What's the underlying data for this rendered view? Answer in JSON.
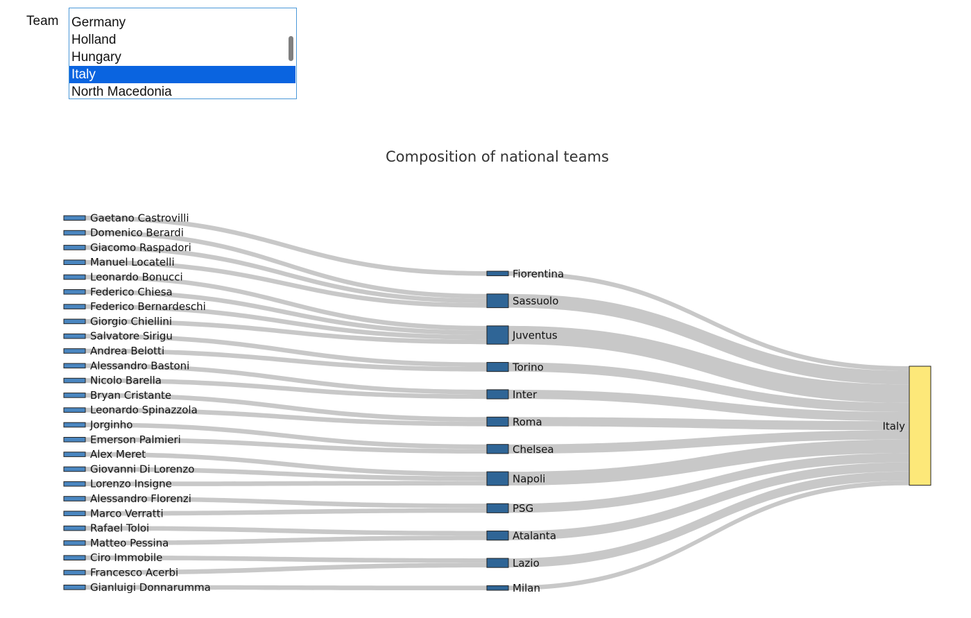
{
  "filter": {
    "label": "Team",
    "options": [
      "Germany",
      "Holland",
      "Hungary",
      "Italy",
      "North Macedonia"
    ],
    "selected": "Italy"
  },
  "chart_data": {
    "type": "sankey",
    "title": "Composition of national teams",
    "players": [
      {
        "name": "Gaetano Castrovilli",
        "club": "Fiorentina"
      },
      {
        "name": "Domenico Berardi",
        "club": "Sassuolo"
      },
      {
        "name": "Giacomo Raspadori",
        "club": "Sassuolo"
      },
      {
        "name": "Manuel Locatelli",
        "club": "Sassuolo"
      },
      {
        "name": "Leonardo Bonucci",
        "club": "Juventus"
      },
      {
        "name": "Federico Chiesa",
        "club": "Juventus"
      },
      {
        "name": "Federico Bernardeschi",
        "club": "Juventus"
      },
      {
        "name": "Giorgio Chiellini",
        "club": "Juventus"
      },
      {
        "name": "Salvatore Sirigu",
        "club": "Torino"
      },
      {
        "name": "Andrea Belotti",
        "club": "Torino"
      },
      {
        "name": "Alessandro Bastoni",
        "club": "Inter"
      },
      {
        "name": "Nicolo Barella",
        "club": "Inter"
      },
      {
        "name": "Bryan Cristante",
        "club": "Roma"
      },
      {
        "name": "Leonardo Spinazzola",
        "club": "Roma"
      },
      {
        "name": "Jorginho",
        "club": "Chelsea"
      },
      {
        "name": "Emerson Palmieri",
        "club": "Chelsea"
      },
      {
        "name": "Alex Meret",
        "club": "Napoli"
      },
      {
        "name": "Giovanni Di Lorenzo",
        "club": "Napoli"
      },
      {
        "name": "Lorenzo Insigne",
        "club": "Napoli"
      },
      {
        "name": "Alessandro Florenzi",
        "club": "PSG"
      },
      {
        "name": "Marco Verratti",
        "club": "PSG"
      },
      {
        "name": "Rafael Toloi",
        "club": "Atalanta"
      },
      {
        "name": "Matteo Pessina",
        "club": "Atalanta"
      },
      {
        "name": "Ciro Immobile",
        "club": "Lazio"
      },
      {
        "name": "Francesco Acerbi",
        "club": "Lazio"
      },
      {
        "name": "Gianluigi Donnarumma",
        "club": "Milan"
      }
    ],
    "clubs": [
      "Fiorentina",
      "Sassuolo",
      "Juventus",
      "Torino",
      "Inter",
      "Roma",
      "Chelsea",
      "Napoli",
      "PSG",
      "Atalanta",
      "Lazio",
      "Milan"
    ],
    "target": "Italy",
    "value_per_player": 1,
    "colors": {
      "player_node": "#4a86c0",
      "club_node": "#2f6596",
      "team_node": "#fde879",
      "link": "#c8c8c8",
      "node_border": "#222222"
    }
  }
}
